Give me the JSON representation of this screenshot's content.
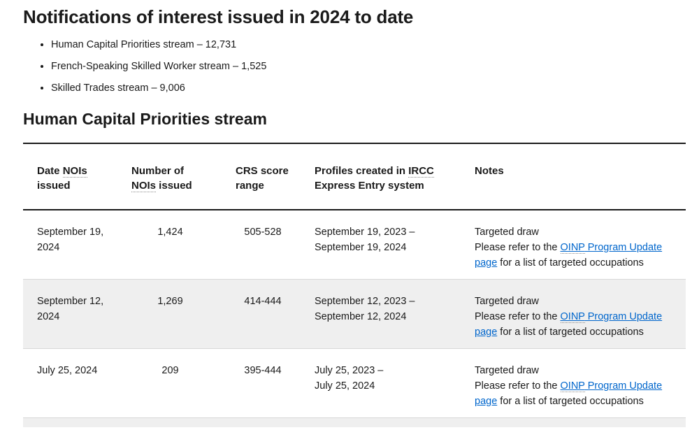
{
  "colors": {
    "text": "#1a1a1a",
    "link": "#0066cc",
    "row_alt_background": "#efefef",
    "table_heavy_border": "#1a1a1a",
    "row_divider": "#d7d7d7"
  },
  "heading": {
    "title": "Notifications of interest issued in 2024 to date"
  },
  "summary": {
    "items": [
      "Human Capital Priorities stream – 12,731",
      "French-Speaking Skilled Worker stream – 1,525",
      "Skilled Trades stream – 9,006"
    ]
  },
  "section": {
    "heading": "Human Capital Priorities stream"
  },
  "table": {
    "headers": [
      {
        "id": "date-nois-issued",
        "parts": [
          {
            "t": "Date "
          },
          {
            "t": "NOIs",
            "abbr": true
          },
          {
            "br": true
          },
          {
            "t": "issued"
          }
        ]
      },
      {
        "id": "number-of-nois-issued",
        "parts": [
          {
            "t": "Number of"
          },
          {
            "br": true
          },
          {
            "t": "NOIs",
            "abbr": true
          },
          {
            "t": " issued"
          }
        ]
      },
      {
        "id": "crs-score-range",
        "parts": [
          {
            "t": "CRS score"
          },
          {
            "br": true
          },
          {
            "t": "range"
          }
        ]
      },
      {
        "id": "profiles-created-in-ircc-express-entry-system",
        "parts": [
          {
            "t": "Profiles created in "
          },
          {
            "t": "IRCC",
            "abbr": true
          },
          {
            "br": true
          },
          {
            "t": "Express Entry system"
          }
        ]
      },
      {
        "id": "notes",
        "parts": [
          {
            "t": "Notes"
          }
        ]
      }
    ],
    "rows": [
      {
        "date": "September 19, 2024",
        "count": "1,424",
        "crs_range": "505-528",
        "profile_period_lines": [
          "September 19, 2023 –",
          "September 19, 2024"
        ],
        "notes": {
          "draw_type": "Targeted draw",
          "before_link": "Please refer to the ",
          "link_abbr": "OINP",
          "link_rest": " Program Update page",
          "after_link": " for a list of targeted occupations"
        }
      },
      {
        "date": "September 12, 2024",
        "count": "1,269",
        "crs_range": "414-444",
        "profile_period_lines": [
          "September 12, 2023 –",
          "September 12, 2024"
        ],
        "notes": {
          "draw_type": "Targeted draw",
          "before_link": "Please refer to the ",
          "link_abbr": "OINP",
          "link_rest": " Program Update page",
          "after_link": " for a list of targeted occupations"
        }
      },
      {
        "date": "July 25, 2024",
        "count": "209",
        "crs_range": "395-444",
        "profile_period_lines": [
          "July 25, 2023 –",
          "July 25, 2024"
        ],
        "notes": {
          "draw_type": "Targeted draw",
          "before_link": "Please refer to the ",
          "link_abbr": "OINP",
          "link_rest": " Program Update page",
          "after_link": " for a list of targeted occupations"
        }
      }
    ]
  }
}
